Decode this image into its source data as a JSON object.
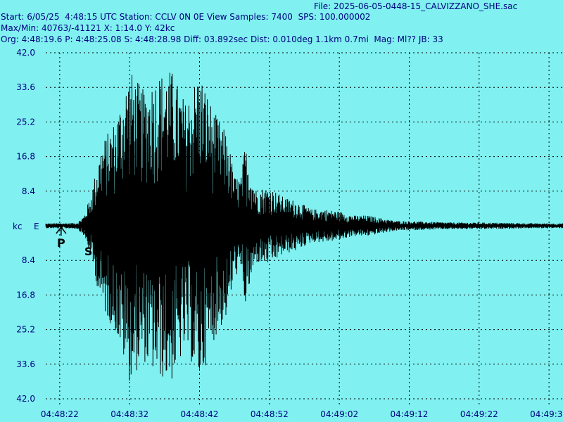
{
  "header": {
    "file_label": "File:",
    "file_name": "2025-06-05-0448-15_CALVIZZANO_SHE.sac",
    "start_label": "Start:",
    "start_value": "6/05/25  4:48:15 UTC",
    "station_label": "Station:",
    "station_value": "CCLV 0N 0E",
    "view_samples_label": "View Samples:",
    "view_samples_value": "7400",
    "sps_label": "SPS:",
    "sps_value": "100.000002",
    "maxmin_label": "Max/Min:",
    "maxmin_value": "40763/-41121",
    "x_label": "X:",
    "x_value": "1:14.0",
    "y_label": "Y:",
    "y_value": "42kc",
    "org_label": "Org:",
    "org_value": "4:48:19.6",
    "p_label": "P:",
    "p_value": "4:48:25.08",
    "s_label": "S:",
    "s_value": "4:48:28.98",
    "diff_label": "Diff:",
    "diff_value": "03.892sec",
    "dist_label": "Dist:",
    "dist_value": "0.010deg 1.1km 0.7mi",
    "mag_label": "Mag:",
    "mag_value": "Ml??",
    "jb_label": "JB:",
    "jb_value": "33"
  },
  "colors": {
    "background": "#80F0F0",
    "text": "#000080",
    "trace": "#000000",
    "grid": "#000000"
  },
  "chart_data": {
    "type": "line",
    "y_unit_label": "kc",
    "component_label": "E",
    "y_ticks": [
      "42.0",
      "33.6",
      "25.2",
      "16.8",
      "8.4",
      "8.4",
      "16.8",
      "25.2",
      "33.6",
      "42.0"
    ],
    "y_tick_values": [
      42.0,
      33.6,
      25.2,
      16.8,
      8.4,
      -8.4,
      -16.8,
      -25.2,
      -33.6,
      -42.0
    ],
    "ylim": [
      -42.0,
      42.0
    ],
    "x_ticks": [
      "04:48:22",
      "04:48:32",
      "04:48:42",
      "04:48:52",
      "04:49:02",
      "04:49:12",
      "04:49:22",
      "04:49:32"
    ],
    "x_tick_seconds": [
      0,
      10,
      20,
      30,
      40,
      50,
      60,
      70
    ],
    "x_range_seconds": [
      -2,
      72
    ],
    "grid": true,
    "picks": [
      {
        "label": "P",
        "time_seconds": 0.2
      },
      {
        "label": "S",
        "time_seconds": 4.1
      }
    ],
    "series": [
      {
        "envelope_t": [
          -2,
          2.5,
          3.5,
          4.5,
          6,
          8,
          10,
          12,
          14,
          16,
          18,
          20,
          22,
          24,
          25,
          26,
          26.5,
          28,
          30,
          32,
          34,
          36,
          38,
          40,
          42,
          44,
          48,
          52,
          56,
          60,
          64,
          68,
          72
        ],
        "envelope_a": [
          0.6,
          0.7,
          2.5,
          8.0,
          20.0,
          26.0,
          38.0,
          33.0,
          37.0,
          38.0,
          30.0,
          38.0,
          28.0,
          22.0,
          12.0,
          12.0,
          20.0,
          9.0,
          9.5,
          7.0,
          6.0,
          4.0,
          4.0,
          3.5,
          2.5,
          2.5,
          1.2,
          1.0,
          0.8,
          0.8,
          0.7,
          0.6,
          0.6
        ]
      }
    ]
  }
}
